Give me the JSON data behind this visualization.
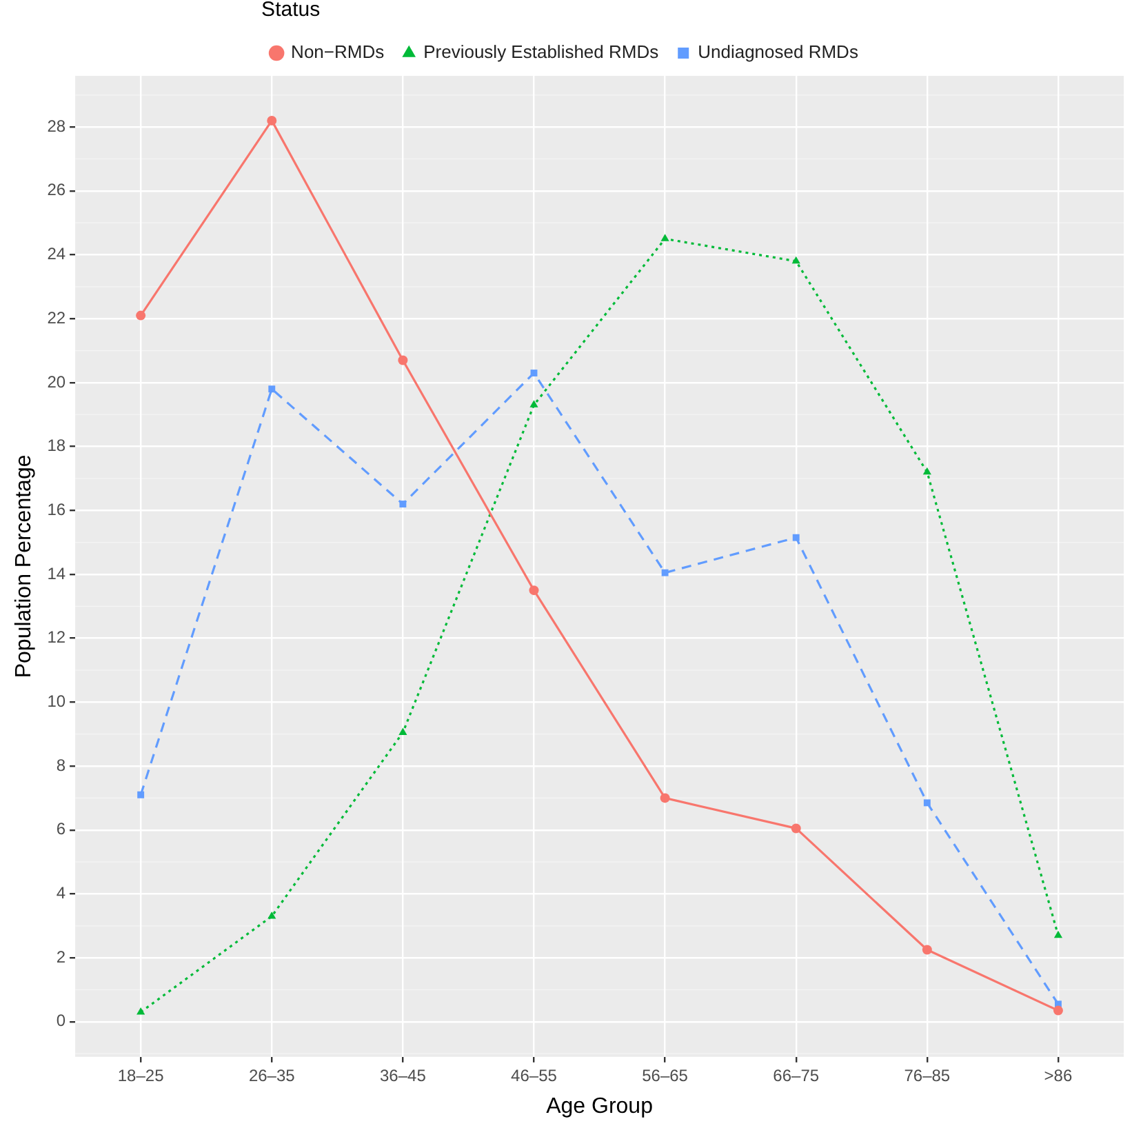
{
  "chart_data": {
    "type": "line",
    "xlabel": "Age Group",
    "ylabel": "Population Percentage",
    "legend_title": "Status",
    "legend": "top",
    "grid": true,
    "categories": [
      "18–25",
      "26–35",
      "36–45",
      "46–55",
      "56–65",
      "66–75",
      "76–85",
      ">86"
    ],
    "ylim": [
      -1.1,
      29.6
    ],
    "yticks": [
      0,
      2,
      4,
      6,
      8,
      10,
      12,
      14,
      16,
      18,
      20,
      22,
      24,
      26,
      28
    ],
    "series": [
      {
        "name": "Non−RMDs",
        "color": "#f8766d",
        "marker": "circle",
        "line_style": "solid",
        "values": [
          22.1,
          28.2,
          20.7,
          13.5,
          7.0,
          6.05,
          2.25,
          0.35
        ]
      },
      {
        "name": "Previously Established RMDs",
        "color": "#00ba38",
        "marker": "triangle",
        "line_style": "dotted",
        "values": [
          0.3,
          3.3,
          9.05,
          19.3,
          24.5,
          23.8,
          17.2,
          2.7
        ]
      },
      {
        "name": "Undiagnosed RMDs",
        "color": "#619cff",
        "marker": "square",
        "line_style": "dashed",
        "values": [
          7.1,
          19.8,
          16.2,
          20.3,
          14.05,
          15.15,
          6.85,
          0.55
        ]
      }
    ]
  }
}
